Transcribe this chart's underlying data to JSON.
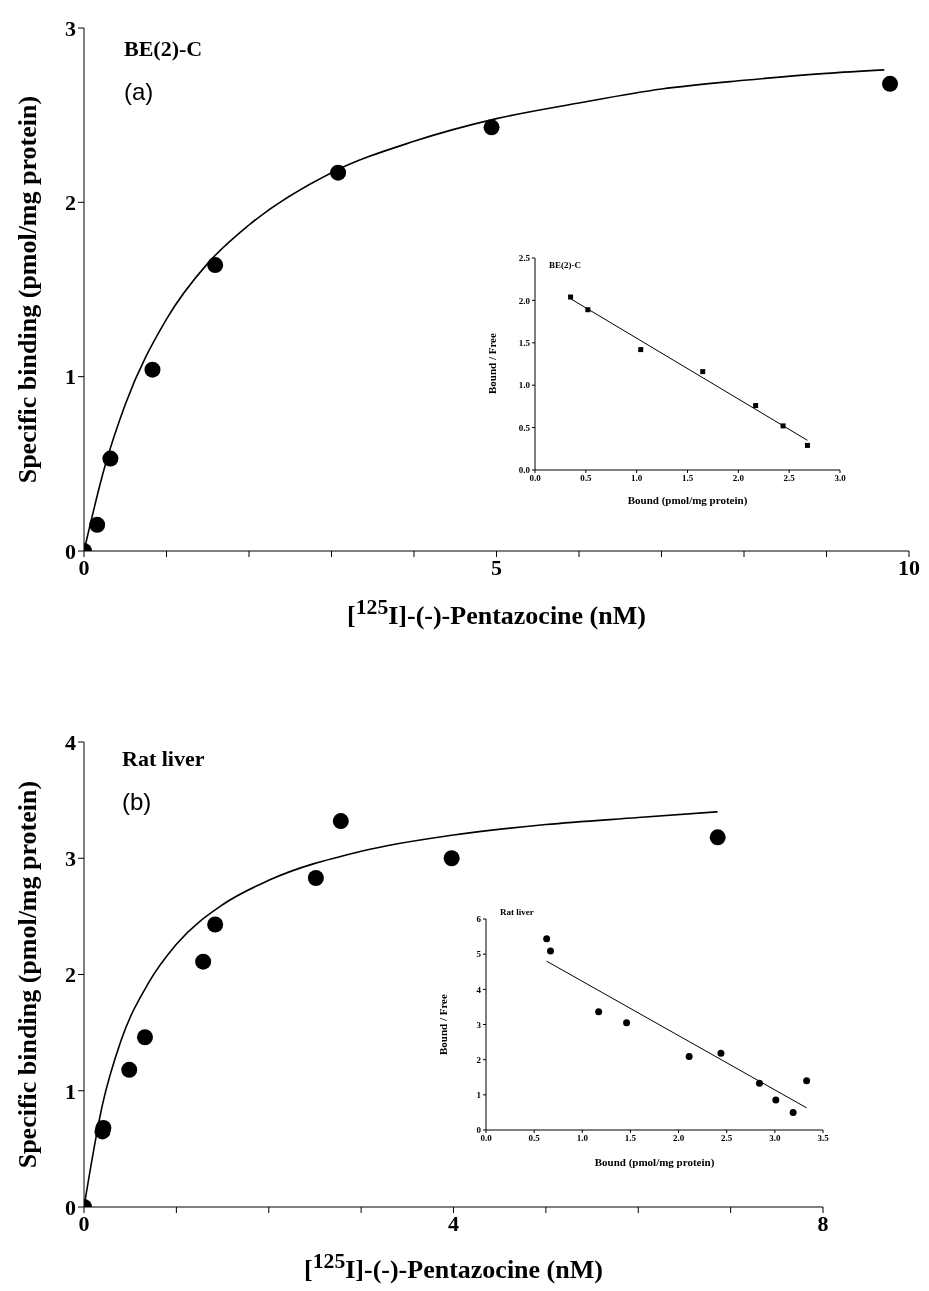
{
  "chart_data": [
    {
      "type": "scatter",
      "title": "BE(2)-C",
      "annotations": [
        "(a)"
      ],
      "xlabel": "[$^{125}$I]-(-)-Pentazocine (nM)",
      "ylabel": "Specific binding (pmol/mg protein)",
      "xlim": [
        0,
        10
      ],
      "xticks": [
        0,
        {
          "value": 1,
          "label": null
        },
        {
          "value": 2,
          "label": null
        },
        {
          "value": 3,
          "label": null
        },
        {
          "value": 4,
          "label": null
        },
        5,
        {
          "value": 6,
          "label": null
        },
        {
          "value": 7,
          "label": null
        },
        {
          "value": 8,
          "label": null
        },
        {
          "value": 9,
          "label": null
        },
        10
      ],
      "ylim": [
        0,
        3
      ],
      "yticks": [
        0,
        1,
        2,
        3
      ],
      "series": [
        {
          "marker": "circle",
          "color": "#000000",
          "x": [
            0,
            0.16,
            0.32,
            0.83,
            1.59,
            3.08,
            4.94,
            9.77
          ],
          "values": [
            0,
            0.15,
            0.53,
            1.04,
            1.64,
            2.17,
            2.43,
            2.68
          ]
        },
        {
          "type": "line",
          "color": "#000000",
          "x": [
            0,
            0.25,
            0.5,
            1,
            1.5,
            2,
            3,
            4,
            5,
            6,
            7,
            8,
            9,
            9.7
          ],
          "values": [
            0,
            0.48,
            0.84,
            1.33,
            1.65,
            1.87,
            2.17,
            2.35,
            2.48,
            2.57,
            2.65,
            2.7,
            2.74,
            2.76
          ]
        }
      ]
    },
    {
      "type": "scatter",
      "title": "BE(2)-C",
      "xlabel": "Bound (pmol/mg protein)",
      "ylabel": "Bound / Free",
      "xlim": [
        0,
        3
      ],
      "xticks": [
        {
          "value": 0,
          "label": "0.0"
        },
        0.5,
        {
          "value": 1,
          "label": "1.0"
        },
        1.5,
        {
          "value": 2,
          "label": "2.0"
        },
        2.5,
        {
          "value": 3,
          "label": "3.0"
        }
      ],
      "ylim": [
        0,
        2.5
      ],
      "yticks": [
        {
          "value": 0,
          "label": "0.0"
        },
        0.5,
        {
          "value": 1,
          "label": "1.0"
        },
        1.5,
        {
          "value": 2,
          "label": "2.0"
        },
        2.5
      ],
      "series": [
        {
          "marker": "square",
          "color": "#000000",
          "x": [
            0.35,
            0.52,
            1.04,
            1.65,
            2.17,
            2.44,
            2.68
          ],
          "values": [
            2.04,
            1.89,
            1.42,
            1.16,
            0.76,
            0.52,
            0.29
          ]
        },
        {
          "type": "line",
          "color": "#000000",
          "x": [
            0.35,
            2.68
          ],
          "values": [
            2.02,
            0.35
          ]
        }
      ]
    },
    {
      "type": "scatter",
      "title": "Rat liver",
      "annotations": [
        "(b)"
      ],
      "xlabel": "[$^{125}$I]-(-)-Pentazocine (nM)",
      "ylabel": "Specific binding (pmol/mg protein)",
      "xlim": [
        0,
        8
      ],
      "xticks": [
        0,
        {
          "value": 1,
          "label": null
        },
        {
          "value": 2,
          "label": null
        },
        {
          "value": 3,
          "label": null
        },
        4,
        {
          "value": 5,
          "label": null
        },
        {
          "value": 6,
          "label": null
        },
        {
          "value": 7,
          "label": null
        },
        8
      ],
      "ylim": [
        0,
        4
      ],
      "yticks": [
        0,
        1,
        2,
        3,
        4
      ],
      "series": [
        {
          "marker": "circle",
          "color": "#000000",
          "x": [
            0,
            0.2,
            0.21,
            0.49,
            0.66,
            1.29,
            1.42,
            2.51,
            2.78,
            3.98,
            6.86
          ],
          "values": [
            0,
            0.65,
            0.68,
            1.18,
            1.46,
            2.11,
            2.43,
            2.83,
            3.32,
            3.0,
            3.18
          ]
        },
        {
          "type": "line",
          "color": "#000000",
          "x": [
            0,
            0.2,
            0.4,
            0.7,
            1,
            1.5,
            2,
            3,
            4,
            5,
            6,
            6.86
          ],
          "values": [
            0,
            0.88,
            1.43,
            1.93,
            2.26,
            2.6,
            2.81,
            3.06,
            3.2,
            3.29,
            3.35,
            3.4
          ]
        }
      ]
    },
    {
      "type": "scatter",
      "title": "Rat liver",
      "xlabel": "Bound (pmol/mg protein)",
      "ylabel": "Bound / Free",
      "xlim": [
        0,
        3.5
      ],
      "xticks": [
        {
          "value": 0,
          "label": "0.0"
        },
        0.5,
        {
          "value": 1,
          "label": "1.0"
        },
        1.5,
        {
          "value": 2,
          "label": "2.0"
        },
        2.5,
        {
          "value": 3,
          "label": "3.0"
        },
        3.5
      ],
      "ylim": [
        0,
        6
      ],
      "yticks": [
        0,
        1,
        2,
        3,
        4,
        5,
        6
      ],
      "series": [
        {
          "marker": "circle",
          "color": "#000000",
          "x": [
            0.63,
            0.67,
            1.17,
            1.46,
            2.11,
            2.44,
            2.84,
            3.01,
            3.19,
            3.33
          ],
          "values": [
            5.44,
            5.09,
            3.36,
            3.05,
            2.09,
            2.18,
            1.33,
            0.85,
            0.5,
            1.4
          ]
        },
        {
          "type": "line",
          "color": "#000000",
          "x": [
            0.63,
            3.33
          ],
          "values": [
            4.8,
            0.63
          ]
        }
      ]
    }
  ]
}
